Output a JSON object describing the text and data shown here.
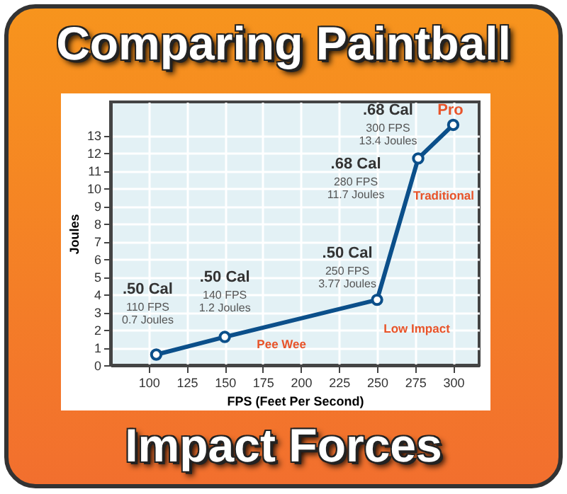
{
  "chart_data": {
    "type": "line",
    "title": "Comparing Paintball",
    "subtitle": "Impact Forces",
    "xlabel": "FPS (Feet Per Second)",
    "ylabel": "Joules",
    "x": [
      105,
      150,
      250,
      277,
      300
    ],
    "series": [
      {
        "color": "#0b4f8a",
        "values": [
          0.6,
          1.6,
          3.7,
          11.7,
          13.6
        ]
      }
    ],
    "xlim": [
      75,
      317
    ],
    "ylim": [
      0,
      14.9
    ],
    "xticks": [
      100,
      125,
      150,
      175,
      200,
      225,
      250,
      275,
      300
    ],
    "yticks": [
      0,
      1,
      2,
      3,
      4,
      5,
      6,
      7,
      8,
      9,
      10,
      11,
      12,
      13
    ],
    "grid": true,
    "marker": "circle",
    "line_style": "solid",
    "annotations": [
      {
        "text": ".50 Cal\n110 FPS\n0.7 Joules",
        "x": 105,
        "y": 0.6
      },
      {
        "text": ".50 Cal\n140 FPS\n1.2 Joules",
        "x": 150,
        "y": 1.6
      },
      {
        "text": ".50 Cal\n250 FPS\n3.77 Joules",
        "x": 250,
        "y": 3.7
      },
      {
        "text": ".68 Cal\n280 FPS\n11.7 Joules",
        "x": 277,
        "y": 11.7
      },
      {
        "text": ".68 Cal\n300 FPS\n13.4 Joules",
        "x": 300,
        "y": 13.6
      },
      {
        "text": "Pee Wee",
        "x": 150,
        "y": 1.6
      },
      {
        "text": "Low Impact",
        "x": 250,
        "y": 3.7
      },
      {
        "text": "Traditional",
        "x": 277,
        "y": 11.7
      },
      {
        "text": "Pro",
        "x": 300,
        "y": 13.6
      }
    ]
  }
}
